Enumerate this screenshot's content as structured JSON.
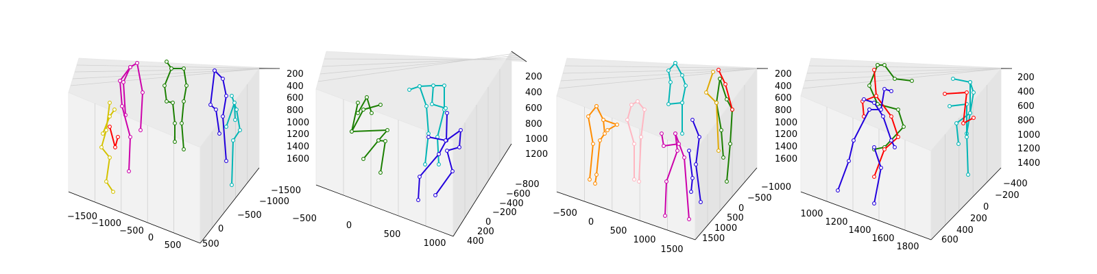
{
  "chart_data": [
    {
      "type": "scatter",
      "subtype": "3d-skeleton",
      "grid": true,
      "xticks": [
        "−1500",
        "−1000",
        "−500",
        "0",
        "500"
      ],
      "yticks": [
        "−1500",
        "−1000",
        "−500",
        "0",
        "500"
      ],
      "zticks": [
        "200",
        "400",
        "600",
        "800",
        "1000",
        "1200",
        "1400",
        "1600"
      ],
      "skeleton_colors": [
        "#ff0000",
        "#d4c200",
        "#cc00aa",
        "#1a7f00",
        "#2200dd",
        "#00b5b5"
      ]
    },
    {
      "type": "scatter",
      "subtype": "3d-skeleton",
      "grid": true,
      "xticks": [
        "−500",
        "0",
        "500",
        "1000"
      ],
      "yticks": [
        "−800",
        "−600",
        "−400",
        "−200",
        "0",
        "200",
        "400"
      ],
      "zticks": [
        "200",
        "400",
        "600",
        "800",
        "1000",
        "1200"
      ],
      "skeleton_colors": [
        "#1a7f00",
        "#00b5b5",
        "#2200dd",
        "#ff0000"
      ]
    },
    {
      "type": "scatter",
      "subtype": "3d-skeleton",
      "grid": true,
      "xticks": [
        "−500",
        "0",
        "500",
        "1000",
        "1500"
      ],
      "yticks": [
        "−1000",
        "−500",
        "0",
        "500",
        "1000",
        "1500"
      ],
      "zticks": [
        "200",
        "400",
        "600",
        "800",
        "1000",
        "1200",
        "1400",
        "1600"
      ],
      "skeleton_colors": [
        "#ff8c00",
        "#ffb6c1",
        "#cc00aa",
        "#00b5b5",
        "#2200dd",
        "#1a7f00",
        "#ff0000",
        "#e0a800"
      ]
    },
    {
      "type": "scatter",
      "subtype": "3d-skeleton",
      "grid": true,
      "xticks": [
        "1000",
        "1200",
        "1400",
        "1600",
        "1800"
      ],
      "yticks": [
        "−400",
        "−200",
        "0",
        "200",
        "400",
        "600"
      ],
      "zticks": [
        "200",
        "400",
        "600",
        "800",
        "1000",
        "1200",
        "1400"
      ],
      "skeleton_colors": [
        "#ff0000",
        "#1a7f00",
        "#2200dd",
        "#00b5b5"
      ]
    }
  ]
}
